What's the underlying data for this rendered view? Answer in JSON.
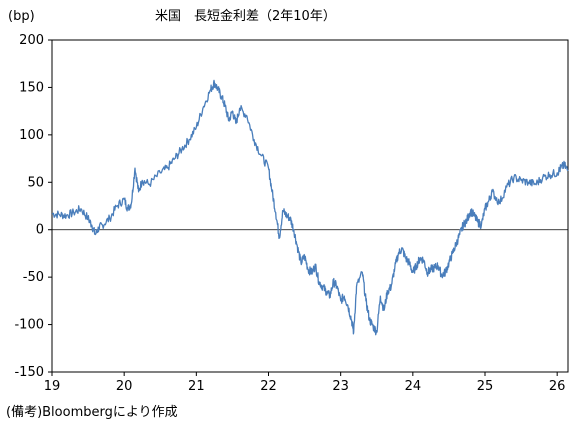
{
  "chart_data": {
    "type": "line",
    "title": "米国　長短金利差（2年10年）",
    "unit_label": "(bp)",
    "source_note": "(備考)Bloombergにより作成",
    "xlabel": "",
    "ylabel": "",
    "x_tick_labels": [
      "19",
      "20",
      "21",
      "22",
      "23",
      "24",
      "25",
      "26"
    ],
    "y_tick_labels": [
      "200",
      "150",
      "100",
      "50",
      "0",
      "-50",
      "-100",
      "-150"
    ],
    "y_ticks": [
      200,
      150,
      100,
      50,
      0,
      -50,
      -100,
      -150
    ],
    "xlim": [
      2019.0,
      2026.15
    ],
    "ylim": [
      -150,
      200
    ],
    "grid": false,
    "zero_line": true,
    "legend": "none",
    "line_color": "#4a7ebb",
    "series": [
      {
        "x": [
          2019.0,
          2019.1,
          2019.2,
          2019.3,
          2019.4,
          2019.5,
          2019.55,
          2019.6,
          2019.65,
          2019.7,
          2019.8,
          2019.9,
          2020.0,
          2020.05,
          2020.1,
          2020.15,
          2020.2,
          2020.25,
          2020.35,
          2020.5,
          2020.6,
          2020.7,
          2020.8,
          2020.9,
          2021.0,
          2021.1,
          2021.2,
          2021.25,
          2021.3,
          2021.35,
          2021.4,
          2021.45,
          2021.5,
          2021.55,
          2021.6,
          2021.7,
          2021.8,
          2021.9,
          2022.0,
          2022.05,
          2022.1,
          2022.15,
          2022.2,
          2022.25,
          2022.3,
          2022.35,
          2022.4,
          2022.45,
          2022.5,
          2022.55,
          2022.6,
          2022.65,
          2022.7,
          2022.75,
          2022.8,
          2022.85,
          2022.9,
          2022.95,
          2023.0,
          2023.05,
          2023.1,
          2023.15,
          2023.18,
          2023.22,
          2023.3,
          2023.35,
          2023.4,
          2023.45,
          2023.5,
          2023.55,
          2023.6,
          2023.65,
          2023.7,
          2023.75,
          2023.8,
          2023.85,
          2023.9,
          2023.95,
          2024.0,
          2024.05,
          2024.1,
          2024.15,
          2024.2,
          2024.25,
          2024.3,
          2024.35,
          2024.4,
          2024.45,
          2024.5,
          2024.55,
          2024.6,
          2024.65,
          2024.7,
          2024.75,
          2024.8,
          2024.85,
          2024.9,
          2024.95,
          2025.0,
          2025.05,
          2025.1,
          2025.2,
          2025.3,
          2025.4,
          2025.5,
          2025.6,
          2025.7,
          2025.8,
          2025.9,
          2026.0,
          2026.05,
          2026.1,
          2026.15
        ],
        "values": [
          17,
          16,
          15,
          18,
          22,
          12,
          5,
          -5,
          2,
          5,
          12,
          25,
          32,
          22,
          28,
          65,
          40,
          52,
          48,
          60,
          65,
          75,
          85,
          95,
          108,
          130,
          148,
          155,
          148,
          140,
          130,
          115,
          125,
          112,
          128,
          120,
          95,
          78,
          65,
          40,
          18,
          -8,
          20,
          15,
          12,
          0,
          -18,
          -35,
          -28,
          -42,
          -45,
          -38,
          -55,
          -60,
          -65,
          -70,
          -55,
          -60,
          -75,
          -70,
          -80,
          -95,
          -108,
          -60,
          -45,
          -75,
          -95,
          -102,
          -108,
          -70,
          -85,
          -65,
          -60,
          -40,
          -25,
          -20,
          -30,
          -35,
          -45,
          -38,
          -30,
          -32,
          -45,
          -42,
          -40,
          -38,
          -48,
          -45,
          -35,
          -25,
          -15,
          -5,
          5,
          10,
          20,
          15,
          8,
          5,
          22,
          30,
          40,
          28,
          45,
          55,
          52,
          50,
          48,
          55,
          58,
          60,
          65,
          68,
          62
        ]
      }
    ]
  }
}
